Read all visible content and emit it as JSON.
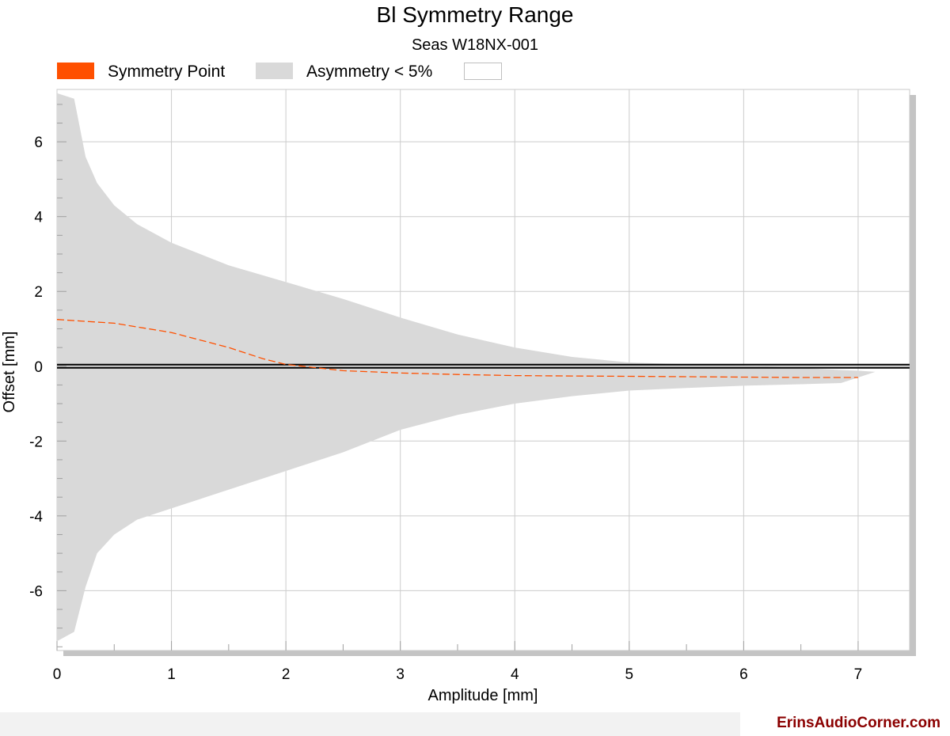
{
  "chart_data": {
    "type": "area",
    "title": "Bl Symmetry Range",
    "subtitle": "Seas W18NX-001",
    "xlabel": "Amplitude [mm]",
    "ylabel": "Offset [mm]",
    "xlim": [
      0,
      7.45
    ],
    "ylim": [
      -7.6,
      7.4
    ],
    "xticks": [
      0,
      1,
      2,
      3,
      4,
      5,
      6,
      7
    ],
    "yticks": [
      -6,
      -4,
      -2,
      0,
      2,
      4,
      6
    ],
    "grid": true,
    "legend_position": "top-left",
    "series": [
      {
        "name": "Symmetry Point",
        "kind": "dashed-line",
        "color": "#ff5000",
        "x": [
          0,
          0.5,
          1.0,
          1.5,
          1.8,
          2.0,
          2.5,
          3.0,
          3.5,
          4.0,
          4.5,
          5.0,
          5.5,
          6.0,
          6.5,
          7.0
        ],
        "y": [
          1.25,
          1.15,
          0.9,
          0.5,
          0.2,
          0.05,
          -0.12,
          -0.18,
          -0.22,
          -0.25,
          -0.26,
          -0.27,
          -0.28,
          -0.29,
          -0.3,
          -0.3
        ]
      },
      {
        "name": "Asymmetry < 5%",
        "kind": "band",
        "color": "#d9d9d9",
        "upper": {
          "x": [
            0,
            0.15,
            0.25,
            0.35,
            0.5,
            0.7,
            1.0,
            1.5,
            2.0,
            2.5,
            3.0,
            3.5,
            4.0,
            4.5,
            5.0,
            5.5,
            6.0,
            6.5,
            6.85,
            7.0,
            7.15
          ],
          "y": [
            7.3,
            7.15,
            5.6,
            4.9,
            4.3,
            3.8,
            3.3,
            2.7,
            2.25,
            1.8,
            1.3,
            0.85,
            0.5,
            0.25,
            0.1,
            0.05,
            0.02,
            -0.05,
            -0.1,
            -0.12,
            -0.15
          ]
        },
        "lower": {
          "x": [
            0,
            0.15,
            0.25,
            0.35,
            0.5,
            0.7,
            1.0,
            1.5,
            2.0,
            2.5,
            3.0,
            3.5,
            4.0,
            4.5,
            5.0,
            5.5,
            6.0,
            6.5,
            6.85,
            7.0,
            7.15
          ],
          "y": [
            -7.35,
            -7.1,
            -5.9,
            -5.0,
            -4.5,
            -4.1,
            -3.8,
            -3.3,
            -2.8,
            -2.3,
            -1.7,
            -1.3,
            -1.0,
            -0.8,
            -0.65,
            -0.58,
            -0.52,
            -0.48,
            -0.45,
            -0.3,
            -0.15
          ]
        }
      }
    ],
    "legend_entries": [
      "Symmetry Point",
      "Asymmetry < 5%",
      ""
    ],
    "zero_line": 0
  },
  "footer": {
    "watermark": "ErinsAudioCorner.com"
  }
}
